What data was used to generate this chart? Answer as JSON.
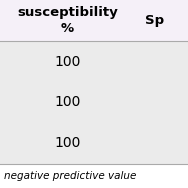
{
  "header_col1": "susceptibility\n%",
  "header_col2": "Sp",
  "rows": [
    "100",
    "100",
    "100"
  ],
  "footer": "negative predictive value",
  "header_bg": "#f5f0f8",
  "row_bg": "#ebebeb",
  "footer_bg": "#ffffff",
  "line_color": "#aaaaaa",
  "text_color": "#000000",
  "header_fontsize": 9.5,
  "data_fontsize": 10,
  "footer_fontsize": 7.5
}
